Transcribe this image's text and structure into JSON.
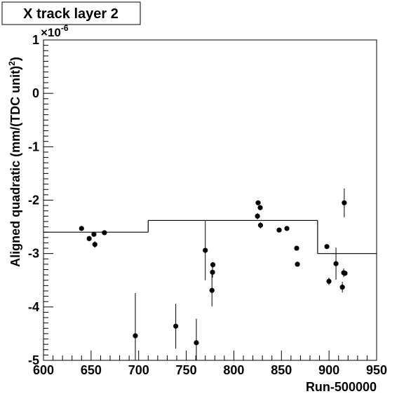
{
  "chart_data": {
    "type": "scatter",
    "title": "X track layer 2",
    "xlabel": "Run-500000",
    "ylabel": {
      "text": "Aligned quadratic (mm/(TDC unit)",
      "sup": "2",
      "end": ")"
    },
    "multiplier": {
      "base": "×10",
      "exponent": "-6"
    },
    "color": "#000000",
    "xlim": [
      600,
      950
    ],
    "ylim": [
      -5,
      1
    ],
    "xticks": [
      600,
      650,
      700,
      750,
      800,
      850,
      900,
      950
    ],
    "yticks": [
      -5,
      -4,
      -3,
      -2,
      -1,
      0,
      1
    ],
    "x": [
      640,
      648,
      653,
      654,
      664,
      696.5,
      739,
      760.6,
      770,
      777,
      777.6,
      778,
      824.8,
      825.5,
      827.7,
      828,
      847.6,
      855.7,
      866,
      866.8,
      897.7,
      899.9,
      907.3,
      914,
      915.4,
      916.8,
      916
    ],
    "values": [
      -2.53,
      -2.72,
      -2.64,
      -2.83,
      -2.61,
      -4.54,
      -4.36,
      -4.67,
      -2.94,
      -3.69,
      -3.35,
      -3.21,
      -2.3,
      -2.05,
      -2.14,
      -2.47,
      -2.56,
      -2.53,
      -2.9,
      -3.2,
      -2.87,
      -3.52,
      -3.19,
      -3.63,
      -3.36,
      -3.37,
      -2.05
    ],
    "errors": [
      0.03,
      0.05,
      0.04,
      0.06,
      0.03,
      0.8,
      0.42,
      0.45,
      0.56,
      0.3,
      0.1,
      0.05,
      0.06,
      0.03,
      0.05,
      0.06,
      0.03,
      0.04,
      0.03,
      0.03,
      0.03,
      0.07,
      0.3,
      0.1,
      0.08,
      0.05,
      0.27
    ],
    "step": {
      "edges": [
        600,
        710,
        888,
        950
      ],
      "values": [
        -2.6,
        -2.38,
        -3.0
      ]
    }
  }
}
